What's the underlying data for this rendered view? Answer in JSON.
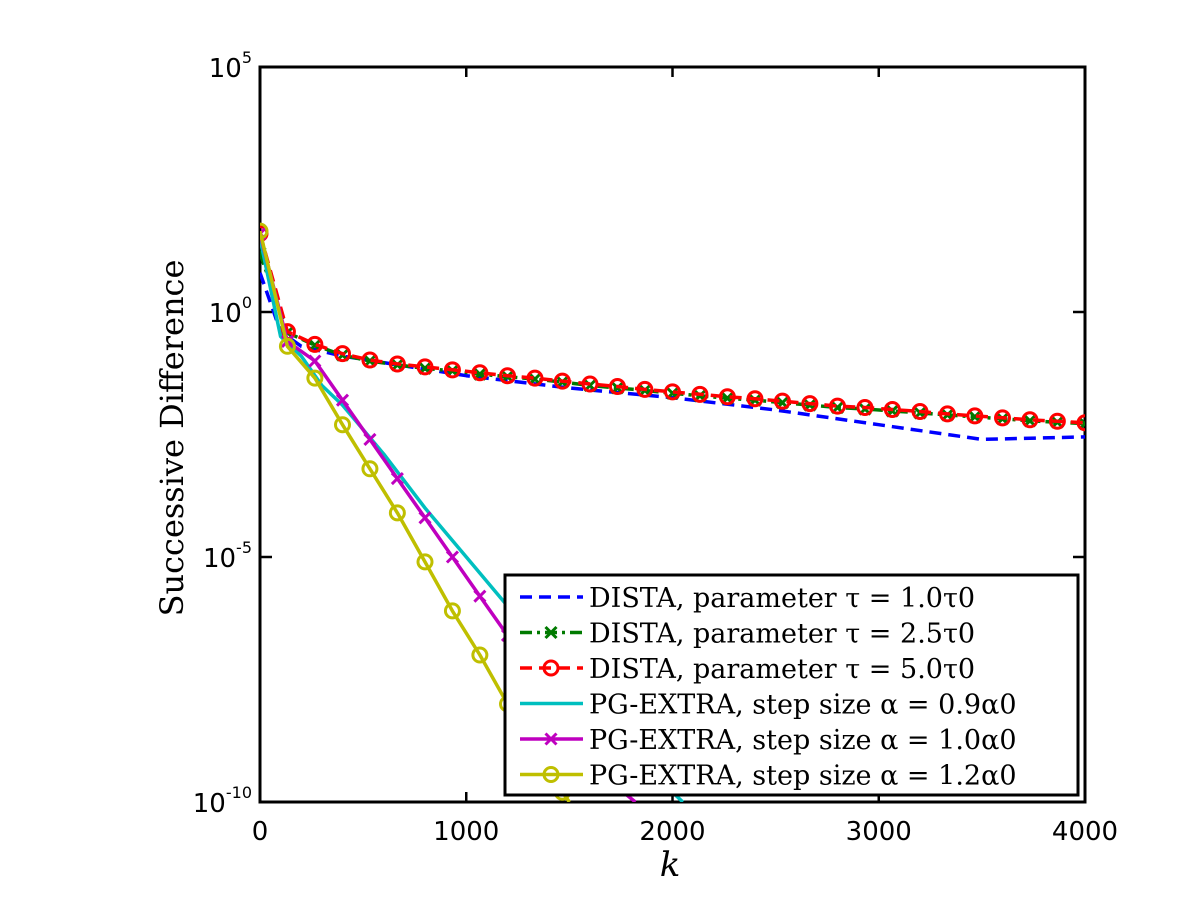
{
  "chart_data": {
    "type": "line",
    "xlabel": "k",
    "ylabel": "Successive Difference",
    "y_scale": "log",
    "xlim": [
      0,
      4000
    ],
    "ylim_exponent": [
      -10,
      5
    ],
    "x_ticks": [
      "0",
      "1000",
      "2000",
      "3000",
      "4000"
    ],
    "y_ticks": [
      {
        "base": "10",
        "exp": "5"
      },
      {
        "base": "10",
        "exp": "0"
      },
      {
        "base": "10",
        "exp": "-5"
      },
      {
        "base": "10",
        "exp": "-10"
      }
    ],
    "grid": false,
    "legend_position": "bottom-right",
    "series": [
      {
        "name": "DISTA, parameter τ = 1.0τ0",
        "color": "#0000ff",
        "dash": "dashed",
        "marker": "none",
        "x": [
          0,
          100,
          200,
          400,
          700,
          1000,
          1500,
          2000,
          2500,
          3000,
          3500,
          4000
        ],
        "y_log10": [
          0.8,
          -0.4,
          -0.7,
          -0.9,
          -1.1,
          -1.3,
          -1.55,
          -1.75,
          -2.0,
          -2.3,
          -2.6,
          -2.55
        ]
      },
      {
        "name": "DISTA, parameter τ = 2.5τ0",
        "color": "#007a00",
        "dash": "dashdot",
        "marker": "x",
        "x": [
          0,
          133,
          266,
          400,
          533,
          666,
          800,
          933,
          1066,
          1200,
          1333,
          1466,
          1600,
          1733,
          1866,
          2000,
          2133,
          2266,
          2400,
          2533,
          2666,
          2800,
          2933,
          3066,
          3200,
          3333,
          3466,
          3600,
          3733,
          3866,
          4000
        ],
        "y_log10": [
          1.2,
          -0.42,
          -0.68,
          -0.88,
          -1.0,
          -1.08,
          -1.15,
          -1.2,
          -1.27,
          -1.32,
          -1.37,
          -1.43,
          -1.5,
          -1.55,
          -1.6,
          -1.66,
          -1.71,
          -1.76,
          -1.8,
          -1.85,
          -1.9,
          -1.95,
          -1.98,
          -2.02,
          -2.06,
          -2.1,
          -2.14,
          -2.18,
          -2.22,
          -2.25,
          -2.28
        ]
      },
      {
        "name": "DISTA, parameter τ = 5.0τ0",
        "color": "#ff0000",
        "dash": "dashed",
        "marker": "o",
        "x": [
          0,
          133,
          266,
          400,
          533,
          666,
          800,
          933,
          1066,
          1200,
          1333,
          1466,
          1600,
          1733,
          1866,
          2000,
          2133,
          2266,
          2400,
          2533,
          2666,
          2800,
          2933,
          3066,
          3200,
          3333,
          3466,
          3600,
          3733,
          3866,
          4000
        ],
        "y_log10": [
          1.6,
          -0.4,
          -0.66,
          -0.85,
          -0.98,
          -1.06,
          -1.12,
          -1.18,
          -1.24,
          -1.3,
          -1.35,
          -1.41,
          -1.47,
          -1.52,
          -1.58,
          -1.63,
          -1.68,
          -1.73,
          -1.77,
          -1.82,
          -1.87,
          -1.92,
          -1.95,
          -1.99,
          -2.03,
          -2.08,
          -2.12,
          -2.16,
          -2.2,
          -2.23,
          -2.26
        ]
      },
      {
        "name": "PG-EXTRA, step size α = 0.9α0",
        "color": "#00bfbf",
        "dash": "solid",
        "marker": "none",
        "x": [
          0,
          100,
          200,
          300,
          400,
          600,
          800,
          1000,
          1200,
          1400,
          1600,
          1800,
          2000,
          2050
        ],
        "y_log10": [
          1.5,
          -0.5,
          -0.9,
          -1.5,
          -1.9,
          -2.9,
          -4.0,
          -5.0,
          -6.0,
          -6.9,
          -7.9,
          -8.9,
          -9.8,
          -10.0
        ]
      },
      {
        "name": "PG-EXTRA, step size α = 1.0α0",
        "color": "#bf00bf",
        "dash": "solid",
        "marker": "x",
        "x": [
          0,
          133,
          266,
          400,
          533,
          666,
          800,
          933,
          1066,
          1200,
          1333,
          1466,
          1600,
          1733,
          1820
        ],
        "y_log10": [
          1.6,
          -0.6,
          -1.0,
          -1.8,
          -2.6,
          -3.4,
          -4.2,
          -5.0,
          -5.8,
          -6.6,
          -7.4,
          -8.2,
          -9.0,
          -9.7,
          -10.0
        ]
      },
      {
        "name": "PG-EXTRA, step size α = 1.2α0",
        "color": "#bfbf00",
        "dash": "solid",
        "marker": "o",
        "x": [
          0,
          133,
          266,
          400,
          533,
          666,
          800,
          933,
          1066,
          1200,
          1333,
          1466,
          1500
        ],
        "y_log10": [
          1.65,
          -0.7,
          -1.35,
          -2.3,
          -3.2,
          -4.1,
          -5.1,
          -6.1,
          -7.0,
          -8.0,
          -8.9,
          -9.8,
          -10.0
        ]
      }
    ]
  }
}
